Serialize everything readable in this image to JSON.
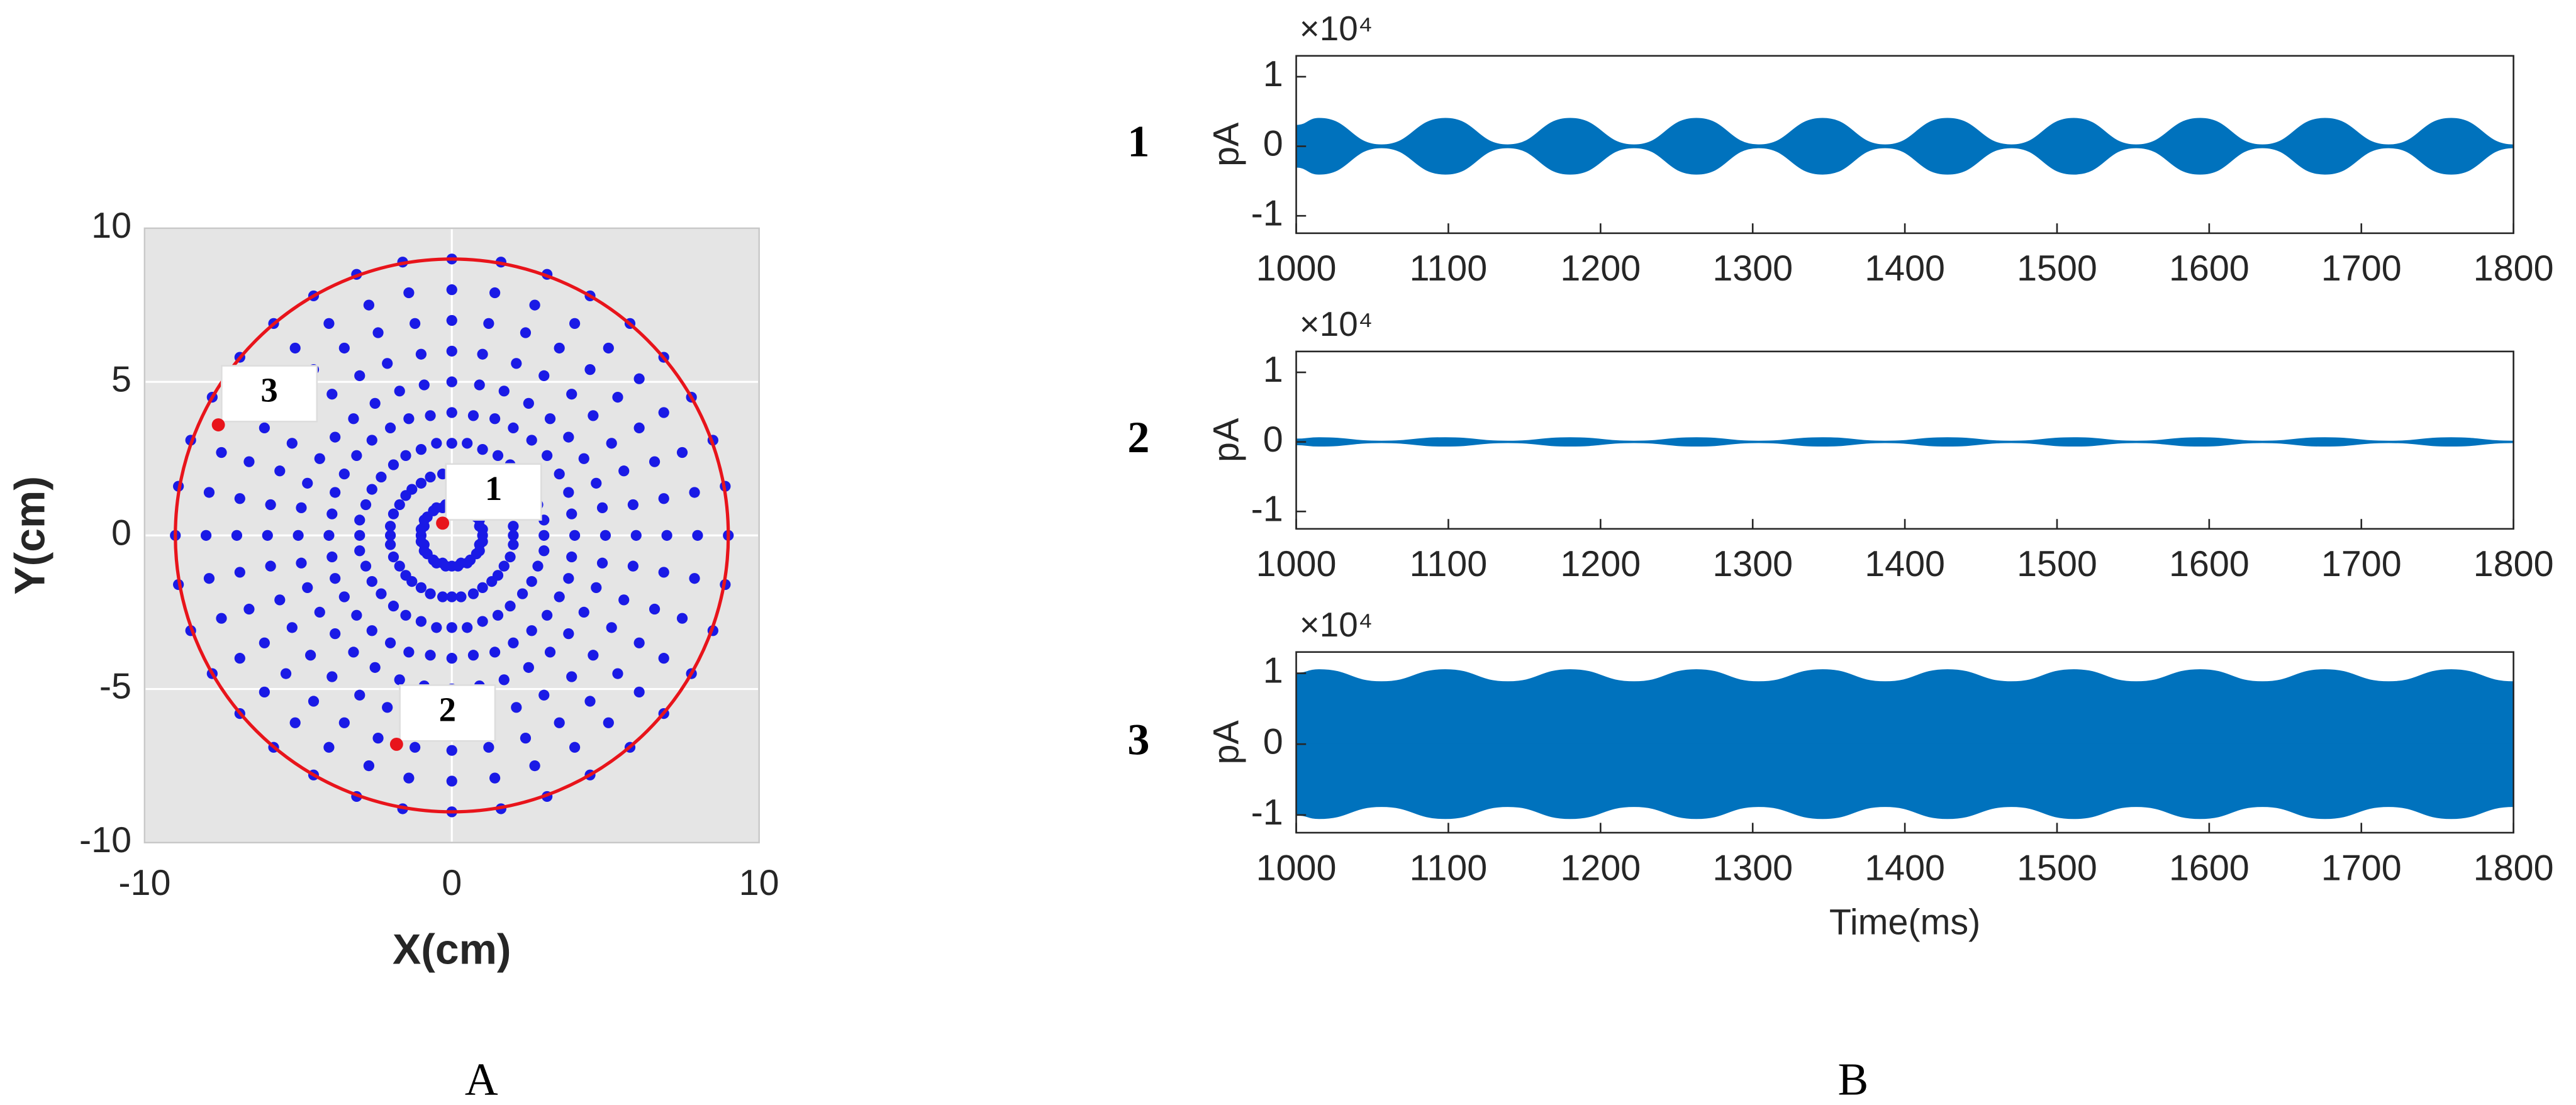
{
  "panel_labels": [
    "A",
    "B"
  ],
  "chart_data": [
    {
      "type": "scatter",
      "xlabel": "X(cm)",
      "ylabel": "Y(cm)",
      "xlim": [
        -10,
        10
      ],
      "ylim": [
        -10,
        10
      ],
      "xticks": [
        -10,
        0,
        10
      ],
      "yticks": [
        -10,
        -5,
        0,
        5,
        10
      ],
      "grid": true,
      "background": "#e5e5e5",
      "boundary_radius": 9,
      "boundary_color": "#e8141b",
      "series": [
        {
          "color": "#1a1ae6",
          "x": [
            1,
            2,
            3,
            4,
            5,
            6,
            7,
            8,
            9,
            1,
            2,
            3,
            3.9,
            4.9,
            5.9,
            6.9,
            7.9,
            8.9,
            0.9,
            1.9,
            2.8,
            3.8,
            4.7,
            5.6,
            6.6,
            7.5,
            8.5,
            0.9,
            1.7,
            2.6,
            3.5,
            4.3,
            5.2,
            6.1,
            6.9,
            7.8,
            0.8,
            1.5,
            2.3,
            3.1,
            3.8,
            4.6,
            5.4,
            6.1,
            6.9,
            0.6,
            1.3,
            1.9,
            2.6,
            3.2,
            3.9,
            4.5,
            5.1,
            5.8,
            0.5,
            1,
            1.5,
            2,
            2.5,
            3,
            3.5,
            4,
            4.5,
            0.3,
            0.7,
            1,
            1.4,
            1.7,
            2.1,
            2.4,
            2.7,
            3.1,
            0.2,
            0.3,
            0.5,
            0.7,
            0.9,
            1,
            1.2,
            1.4,
            1.6,
            0,
            0,
            0,
            0,
            0,
            0,
            0,
            0,
            0,
            -0.2,
            -0.3,
            -0.5,
            -0.7,
            -0.9,
            -1,
            -1.2,
            -1.4,
            -1.6,
            -0.3,
            -0.7,
            -1,
            -1.4,
            -1.7,
            -2.1,
            -2.4,
            -2.7,
            -3.1,
            -0.5,
            -1,
            -1.5,
            -2,
            -2.5,
            -3,
            -3.5,
            -4,
            -4.5,
            -0.6,
            -1.3,
            -1.9,
            -2.6,
            -3.2,
            -3.9,
            -4.5,
            -5.1,
            -5.8,
            -0.8,
            -1.5,
            -2.3,
            -3.1,
            -3.8,
            -4.6,
            -5.4,
            -6.1,
            -6.9,
            -0.9,
            -1.7,
            -2.6,
            -3.5,
            -4.3,
            -5.2,
            -6.1,
            -6.9,
            -7.8,
            -0.9,
            -1.9,
            -2.8,
            -3.8,
            -4.7,
            -5.6,
            -6.6,
            -7.5,
            -8.5,
            -1,
            -2,
            -3,
            -3.9,
            -4.9,
            -5.9,
            -6.9,
            -7.9,
            -8.9,
            -1,
            -2,
            -3,
            -4,
            -5,
            -6,
            -7,
            -8,
            -9,
            -1,
            -2,
            -3,
            -3.9,
            -4.9,
            -5.9,
            -6.9,
            -7.9,
            -8.9,
            -0.9,
            -1.9,
            -2.8,
            -3.8,
            -4.7,
            -5.6,
            -6.6,
            -7.5,
            -8.5,
            -0.9,
            -1.7,
            -2.6,
            -3.5,
            -4.3,
            -5.2,
            -6.1,
            -6.9,
            -7.8,
            -0.8,
            -1.5,
            -2.3,
            -3.1,
            -3.8,
            -4.6,
            -5.4,
            -6.1,
            -6.9,
            -0.6,
            -1.3,
            -1.9,
            -2.6,
            -3.2,
            -3.9,
            -4.5,
            -5.1,
            -5.8,
            -0.5,
            -1,
            -1.5,
            -2,
            -2.5,
            -3,
            -3.5,
            -4,
            -4.5,
            -0.3,
            -0.7,
            -1,
            -1.4,
            -1.7,
            -2.1,
            -2.4,
            -2.7,
            -3.1,
            -0.2,
            -0.3,
            -0.5,
            -0.7,
            -0.9,
            -1,
            -1.2,
            -1.4,
            -1.6,
            0,
            0,
            0,
            0,
            0,
            0,
            0,
            0,
            0,
            0.2,
            0.3,
            0.5,
            0.7,
            0.9,
            1,
            1.2,
            1.4,
            1.6,
            0.3,
            0.7,
            1,
            1.4,
            1.7,
            2.1,
            2.4,
            2.7,
            3.1,
            0.5,
            1,
            1.5,
            2,
            2.5,
            3,
            3.5,
            4,
            4.5,
            0.6,
            1.3,
            1.9,
            2.6,
            3.2,
            3.9,
            4.5,
            5.1,
            5.8,
            0.8,
            1.5,
            2.3,
            3.1,
            3.8,
            4.6,
            5.4,
            6.1,
            6.9,
            0.9,
            1.7,
            2.6,
            3.5,
            4.3,
            5.2,
            6.1,
            6.9,
            7.8,
            0.9,
            1.9,
            2.8,
            3.8,
            4.7,
            5.6,
            6.6,
            7.5,
            8.5,
            1,
            2,
            3,
            3.9,
            4.9,
            5.9,
            6.9,
            7.9,
            8.9
          ],
          "y": [
            0,
            0,
            0,
            0,
            0,
            0,
            0,
            0,
            0,
            0.2,
            0.3,
            0.5,
            0.7,
            0.9,
            1,
            1.2,
            1.4,
            1.6,
            0.3,
            0.7,
            1,
            1.4,
            1.7,
            2.1,
            2.4,
            2.7,
            3.1,
            0.5,
            1,
            1.5,
            2,
            2.5,
            3,
            3.5,
            4,
            4.5,
            0.6,
            1.3,
            1.9,
            2.6,
            3.2,
            3.9,
            4.5,
            5.1,
            5.8,
            0.8,
            1.5,
            2.3,
            3.1,
            3.8,
            4.6,
            5.4,
            6.1,
            6.9,
            0.9,
            1.7,
            2.6,
            3.5,
            4.3,
            5.2,
            6.1,
            6.9,
            7.8,
            0.9,
            1.9,
            2.8,
            3.8,
            4.7,
            5.6,
            6.6,
            7.5,
            8.5,
            1,
            2,
            3,
            3.9,
            4.9,
            5.9,
            6.9,
            7.9,
            8.9,
            1,
            2,
            3,
            4,
            5,
            6,
            7,
            8,
            9,
            1,
            2,
            3,
            3.9,
            4.9,
            5.9,
            6.9,
            7.9,
            8.9,
            0.9,
            1.9,
            2.8,
            3.8,
            4.7,
            5.6,
            6.6,
            7.5,
            8.5,
            0.9,
            1.7,
            2.6,
            3.5,
            4.3,
            5.2,
            6.1,
            6.9,
            7.8,
            0.8,
            1.5,
            2.3,
            3.1,
            3.8,
            4.6,
            5.4,
            6.1,
            6.9,
            0.6,
            1.3,
            1.9,
            2.6,
            3.2,
            3.9,
            4.5,
            5.1,
            5.8,
            0.5,
            1,
            1.5,
            2,
            2.5,
            3,
            3.5,
            4,
            4.5,
            0.3,
            0.7,
            1,
            1.4,
            1.7,
            2.1,
            2.4,
            2.7,
            3.1,
            0.2,
            0.3,
            0.5,
            0.7,
            0.9,
            1,
            1.2,
            1.4,
            1.6,
            0,
            0,
            0,
            0,
            0,
            0,
            0,
            0,
            0,
            -0.2,
            -0.3,
            -0.5,
            -0.7,
            -0.9,
            -1,
            -1.2,
            -1.4,
            -1.6,
            -0.3,
            -0.7,
            -1,
            -1.4,
            -1.7,
            -2.1,
            -2.4,
            -2.7,
            -3.1,
            -0.5,
            -1,
            -1.5,
            -2,
            -2.5,
            -3,
            -3.5,
            -4,
            -4.5,
            -0.6,
            -1.3,
            -1.9,
            -2.6,
            -3.2,
            -3.9,
            -4.5,
            -5.1,
            -5.8,
            -0.8,
            -1.5,
            -2.3,
            -3.1,
            -3.8,
            -4.6,
            -5.4,
            -6.1,
            -6.9,
            -0.9,
            -1.7,
            -2.6,
            -3.5,
            -4.3,
            -5.2,
            -6.1,
            -6.9,
            -7.8,
            -0.9,
            -1.9,
            -2.8,
            -3.8,
            -4.7,
            -5.6,
            -6.6,
            -7.5,
            -8.5,
            -1,
            -2,
            -3,
            -3.9,
            -4.9,
            -5.9,
            -6.9,
            -7.9,
            -8.9,
            -1,
            -2,
            -3,
            -4,
            -5,
            -6,
            -7,
            -8,
            -9,
            -1,
            -2,
            -3,
            -3.9,
            -4.9,
            -5.9,
            -6.9,
            -7.9,
            -8.9,
            -0.9,
            -1.9,
            -2.8,
            -3.8,
            -4.7,
            -5.6,
            -6.6,
            -7.5,
            -8.5,
            -0.9,
            -1.7,
            -2.6,
            -3.5,
            -4.3,
            -5.2,
            -6.1,
            -6.9,
            -7.8,
            -0.8,
            -1.5,
            -2.3,
            -3.1,
            -3.8,
            -4.6,
            -5.4,
            -6.1,
            -6.9,
            -0.6,
            -1.3,
            -1.9,
            -2.6,
            -3.2,
            -3.9,
            -4.5,
            -5.1,
            -5.8,
            -0.5,
            -1,
            -1.5,
            -2,
            -2.5,
            -3,
            -3.5,
            -4,
            -4.5,
            -0.3,
            -0.7,
            -1,
            -1.4,
            -1.7,
            -2.1,
            -2.4,
            -2.7,
            -3.1,
            -0.2,
            -0.3,
            -0.5,
            -0.7,
            -0.9,
            -1,
            -1.2,
            -1.4,
            -1.6
          ]
        },
        {
          "color": "#e8141b",
          "x": [
            -0.3,
            -1.8,
            -7.6
          ],
          "y": [
            0.4,
            -6.8,
            3.6
          ],
          "point_labels": [
            "1",
            "2",
            "3"
          ]
        }
      ]
    },
    {
      "type": "area",
      "row_label": "1",
      "ylabel": "pA",
      "y_multiplier": "×10⁴",
      "xlim": [
        1000,
        1800
      ],
      "xticks": [
        1000,
        1100,
        1200,
        1300,
        1400,
        1500,
        1600,
        1700,
        1800
      ],
      "ylim": [
        -1.25,
        1.3
      ],
      "yticks": [
        -1,
        0,
        1
      ],
      "x": [
        1000,
        1015,
        1056,
        1098,
        1139,
        1180,
        1222,
        1263,
        1304,
        1346,
        1387,
        1428,
        1470,
        1511,
        1552,
        1594,
        1635,
        1676,
        1718,
        1759,
        1800
      ],
      "series": [
        {
          "color": "#0072bd",
          "upper": [
            0.3,
            0.4,
            0.02,
            0.4,
            0.02,
            0.4,
            0.02,
            0.4,
            0.02,
            0.4,
            0.02,
            0.4,
            0.02,
            0.4,
            0.02,
            0.4,
            0.02,
            0.4,
            0.02,
            0.4,
            0.02
          ],
          "lower": [
            -0.3,
            -0.4,
            -0.02,
            -0.4,
            -0.02,
            -0.4,
            -0.02,
            -0.4,
            -0.02,
            -0.4,
            -0.02,
            -0.4,
            -0.02,
            -0.4,
            -0.02,
            -0.4,
            -0.02,
            -0.4,
            -0.02,
            -0.4,
            -0.02
          ]
        }
      ]
    },
    {
      "type": "area",
      "row_label": "2",
      "ylabel": "pA",
      "y_multiplier": "×10⁴",
      "xlim": [
        1000,
        1800
      ],
      "xticks": [
        1000,
        1100,
        1200,
        1300,
        1400,
        1500,
        1600,
        1700,
        1800
      ],
      "ylim": [
        -1.25,
        1.3
      ],
      "yticks": [
        -1,
        0,
        1
      ],
      "x": [
        1000,
        1015,
        1056,
        1098,
        1139,
        1180,
        1222,
        1263,
        1304,
        1346,
        1387,
        1428,
        1470,
        1511,
        1552,
        1594,
        1635,
        1676,
        1718,
        1759,
        1800
      ],
      "series": [
        {
          "color": "#0072bd",
          "upper": [
            0.04,
            0.06,
            0.01,
            0.06,
            0.01,
            0.06,
            0.01,
            0.06,
            0.01,
            0.06,
            0.01,
            0.06,
            0.01,
            0.06,
            0.01,
            0.06,
            0.01,
            0.06,
            0.01,
            0.06,
            0.01
          ],
          "lower": [
            -0.04,
            -0.06,
            -0.01,
            -0.06,
            -0.01,
            -0.06,
            -0.01,
            -0.06,
            -0.01,
            -0.06,
            -0.01,
            -0.06,
            -0.01,
            -0.06,
            -0.01,
            -0.06,
            -0.01,
            -0.06,
            -0.01,
            -0.06,
            -0.01
          ]
        }
      ]
    },
    {
      "type": "area",
      "row_label": "3",
      "ylabel": "pA",
      "y_multiplier": "×10⁴",
      "xlabel": "Time(ms)",
      "xlim": [
        1000,
        1800
      ],
      "xticks": [
        1000,
        1100,
        1200,
        1300,
        1400,
        1500,
        1600,
        1700,
        1800
      ],
      "ylim": [
        -1.25,
        1.3
      ],
      "yticks": [
        -1,
        0,
        1
      ],
      "x": [
        1000,
        1015,
        1056,
        1098,
        1139,
        1180,
        1222,
        1263,
        1304,
        1346,
        1387,
        1428,
        1470,
        1511,
        1552,
        1594,
        1635,
        1676,
        1718,
        1759,
        1800
      ],
      "series": [
        {
          "color": "#0072bd",
          "upper": [
            1,
            1.05,
            0.88,
            1.05,
            0.88,
            1.05,
            0.88,
            1.05,
            0.88,
            1.05,
            0.88,
            1.05,
            0.88,
            1.05,
            0.88,
            1.05,
            0.88,
            1.05,
            0.88,
            1.05,
            0.88
          ],
          "lower": [
            -1,
            -1.05,
            -0.88,
            -1.05,
            -0.88,
            -1.05,
            -0.88,
            -1.05,
            -0.88,
            -1.05,
            -0.88,
            -1.05,
            -0.88,
            -1.05,
            -0.88,
            -1.05,
            -0.88,
            -1.05,
            -0.88,
            -1.05,
            -0.88
          ]
        }
      ]
    }
  ]
}
